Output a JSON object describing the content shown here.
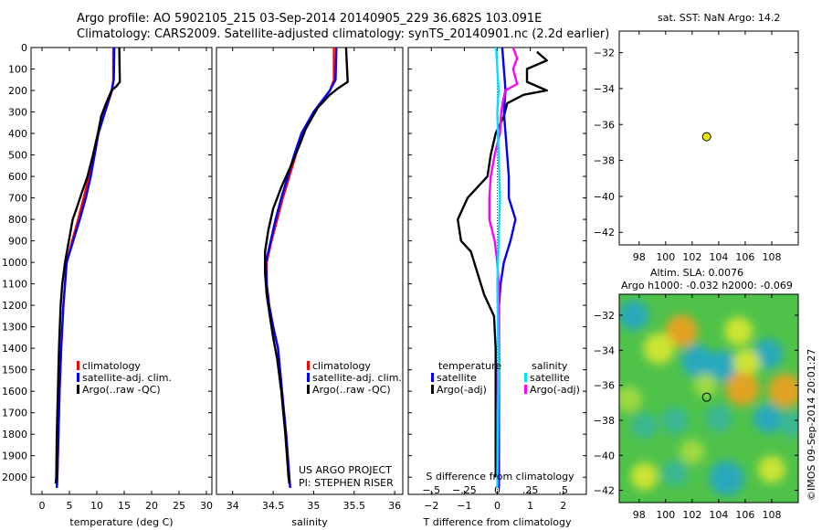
{
  "header": {
    "line1": "Argo profile: AO 5902105_215 03-Sep-2014 20140905_229 36.682S 103.091E",
    "line2": "Climatology: CARS2009. Satellite-adjusted climatology: synTS_20140901.nc (2.2d earlier)"
  },
  "colors": {
    "climatology": "#ff0000",
    "satellite": "#0000ff",
    "argo": "#000000",
    "s_satellite": "#00e0ff",
    "s_argo": "#ff00ff",
    "marker": "#e8e800"
  },
  "legend_left": {
    "items": [
      "climatology",
      "satellite-adj. clim.",
      "Argo(..raw -QC)"
    ]
  },
  "legend_mid": {
    "items": [
      "climatology",
      "satellite-adj. clim.",
      "Argo(..raw -QC)"
    ]
  },
  "legend_diff": {
    "temp_title": "temperature",
    "temp_sat": "satellite",
    "temp_argo": "Argo(-adj)",
    "sal_title": "salinity",
    "sal_sat": "satellite",
    "sal_argo": "Argo(-adj)"
  },
  "credits": {
    "project": "US ARGO PROJECT",
    "pi": "PI: STEPHEN RISER"
  },
  "map1": {
    "title": "sat. SST: NaN Argo: 14.2"
  },
  "map2": {
    "title1": "Altim. SLA: 0.0076",
    "title2": "Argo h1000: -0.032 h2000: -0.069"
  },
  "side_label": "©IMOS 09-Sep-2014 20:01:27",
  "chart_data": [
    {
      "type": "line",
      "name": "temperature profile",
      "xlabel": "temperature (deg C)",
      "ylabel": "",
      "xlim": [
        -2,
        31
      ],
      "ylim": [
        2080,
        0
      ],
      "x_ticks": [
        0,
        5,
        10,
        15,
        20,
        25,
        30
      ],
      "y_ticks": [
        0,
        100,
        200,
        300,
        400,
        500,
        600,
        700,
        800,
        900,
        1000,
        1100,
        1200,
        1300,
        1400,
        1500,
        1600,
        1700,
        1800,
        1900,
        2000
      ],
      "series": [
        {
          "name": "climatology",
          "points": [
            [
              13,
              0
            ],
            [
              13,
              150
            ],
            [
              12.8,
              200
            ],
            [
              11.5,
              300
            ],
            [
              10.2,
              400
            ],
            [
              9.4,
              500
            ],
            [
              8.6,
              600
            ],
            [
              7.6,
              700
            ],
            [
              6.6,
              800
            ],
            [
              5.5,
              900
            ],
            [
              4.5,
              1000
            ],
            [
              3.9,
              1200
            ],
            [
              3.5,
              1400
            ],
            [
              3.2,
              1600
            ],
            [
              3.0,
              1800
            ],
            [
              2.8,
              2000
            ],
            [
              2.7,
              2050
            ]
          ]
        },
        {
          "name": "satellite-adj. clim.",
          "points": [
            [
              13.2,
              0
            ],
            [
              13.1,
              150
            ],
            [
              12.7,
              200
            ],
            [
              11.5,
              300
            ],
            [
              10.3,
              400
            ],
            [
              9.6,
              500
            ],
            [
              8.9,
              600
            ],
            [
              8,
              700
            ],
            [
              6.9,
              800
            ],
            [
              5.7,
              900
            ],
            [
              4.5,
              1000
            ],
            [
              3.9,
              1200
            ],
            [
              3.5,
              1400
            ],
            [
              3.2,
              1600
            ],
            [
              3.0,
              1800
            ],
            [
              2.8,
              2000
            ],
            [
              2.7,
              2050
            ]
          ]
        },
        {
          "name": "Argo(..raw -QC)",
          "points": [
            [
              14.1,
              0
            ],
            [
              14.2,
              160
            ],
            [
              13.6,
              180
            ],
            [
              12.7,
              200
            ],
            [
              11.7,
              260
            ],
            [
              10.8,
              320
            ],
            [
              10.2,
              400
            ],
            [
              9.3,
              500
            ],
            [
              8.3,
              600
            ],
            [
              7.2,
              680
            ],
            [
              6.3,
              750
            ],
            [
              5.6,
              800
            ],
            [
              4.9,
              900
            ],
            [
              4.2,
              1000
            ],
            [
              3.7,
              1100
            ],
            [
              3.4,
              1200
            ],
            [
              3.1,
              1400
            ],
            [
              2.9,
              1600
            ],
            [
              2.7,
              1800
            ],
            [
              2.6,
              2000
            ],
            [
              2.5,
              2030
            ]
          ]
        }
      ]
    },
    {
      "type": "line",
      "name": "salinity profile",
      "xlabel": "salinity",
      "xlim": [
        33.8,
        36.1
      ],
      "ylim": [
        2080,
        0
      ],
      "x_ticks": [
        34,
        34.5,
        35,
        35.5,
        36
      ],
      "series": [
        {
          "name": "climatology",
          "points": [
            [
              35.25,
              0
            ],
            [
              35.25,
              150
            ],
            [
              35.2,
              200
            ],
            [
              35.0,
              300
            ],
            [
              34.85,
              400
            ],
            [
              34.78,
              500
            ],
            [
              34.7,
              600
            ],
            [
              34.62,
              700
            ],
            [
              34.55,
              800
            ],
            [
              34.48,
              900
            ],
            [
              34.42,
              1000
            ],
            [
              34.42,
              1100
            ],
            [
              34.45,
              1200
            ],
            [
              34.5,
              1300
            ],
            [
              34.56,
              1400
            ],
            [
              34.61,
              1600
            ],
            [
              34.66,
              1800
            ],
            [
              34.7,
              2000
            ],
            [
              34.71,
              2050
            ]
          ]
        },
        {
          "name": "satellite-adj. clim.",
          "points": [
            [
              35.28,
              0
            ],
            [
              35.27,
              150
            ],
            [
              35.2,
              200
            ],
            [
              35.0,
              300
            ],
            [
              34.85,
              400
            ],
            [
              34.76,
              500
            ],
            [
              34.68,
              600
            ],
            [
              34.6,
              700
            ],
            [
              34.53,
              800
            ],
            [
              34.47,
              900
            ],
            [
              34.41,
              1000
            ],
            [
              34.42,
              1100
            ],
            [
              34.45,
              1200
            ],
            [
              34.5,
              1300
            ],
            [
              34.56,
              1400
            ],
            [
              34.61,
              1600
            ],
            [
              34.66,
              1800
            ],
            [
              34.7,
              2000
            ],
            [
              34.71,
              2050
            ]
          ]
        },
        {
          "name": "Argo(..raw -QC)",
          "points": [
            [
              35.4,
              0
            ],
            [
              35.42,
              160
            ],
            [
              35.3,
              190
            ],
            [
              35.2,
              220
            ],
            [
              35.05,
              280
            ],
            [
              34.9,
              380
            ],
            [
              34.83,
              450
            ],
            [
              34.72,
              550
            ],
            [
              34.6,
              650
            ],
            [
              34.5,
              750
            ],
            [
              34.44,
              850
            ],
            [
              34.4,
              950
            ],
            [
              34.4,
              1050
            ],
            [
              34.42,
              1150
            ],
            [
              34.46,
              1250
            ],
            [
              34.5,
              1350
            ],
            [
              34.55,
              1450
            ],
            [
              34.6,
              1600
            ],
            [
              34.65,
              1800
            ],
            [
              34.69,
              2000
            ],
            [
              34.7,
              2030
            ]
          ]
        }
      ]
    },
    {
      "type": "line",
      "name": "difference from climatology",
      "xlabel": "T difference from climatology",
      "x2label": "S difference from climatology",
      "xlim": [
        -2.7,
        2.7
      ],
      "ylim": [
        2080,
        0
      ],
      "x_ticks": [
        -2,
        -1,
        0,
        1,
        2
      ],
      "x2_ticks": [
        -0.5,
        -0.25,
        0,
        0.25,
        0.5
      ],
      "series": [
        {
          "name": "temperature satellite",
          "points": [
            [
              0.15,
              0
            ],
            [
              0.2,
              100
            ],
            [
              0.25,
              200
            ],
            [
              0.2,
              300
            ],
            [
              0.25,
              400
            ],
            [
              0.3,
              500
            ],
            [
              0.35,
              600
            ],
            [
              0.35,
              700
            ],
            [
              0.55,
              800
            ],
            [
              0.4,
              900
            ],
            [
              0.2,
              1000
            ],
            [
              0.1,
              1100
            ],
            [
              0.05,
              1200
            ],
            [
              0.05,
              1500
            ],
            [
              0.05,
              2050
            ]
          ]
        },
        {
          "name": "temperature Argo(-adj)",
          "points": [
            [
              1.2,
              20
            ],
            [
              1.5,
              60
            ],
            [
              0.9,
              100
            ],
            [
              0.9,
              160
            ],
            [
              1.5,
              200
            ],
            [
              0.8,
              220
            ],
            [
              0.3,
              260
            ],
            [
              0.2,
              320
            ],
            [
              -0.05,
              400
            ],
            [
              -0.2,
              500
            ],
            [
              -0.3,
              600
            ],
            [
              -0.9,
              700
            ],
            [
              -1.2,
              800
            ],
            [
              -1.1,
              900
            ],
            [
              -0.8,
              950
            ],
            [
              -0.6,
              1050
            ],
            [
              -0.4,
              1150
            ],
            [
              -0.1,
              1250
            ],
            [
              -0.05,
              1400
            ],
            [
              -0.05,
              1600
            ],
            [
              -0.05,
              1800
            ],
            [
              -0.05,
              2000
            ]
          ]
        },
        {
          "name": "salinity satellite",
          "points": [
            [
              -0.01,
              0
            ],
            [
              0,
              100
            ],
            [
              0.01,
              200
            ],
            [
              0.0,
              300
            ],
            [
              0.01,
              500
            ],
            [
              0.02,
              700
            ],
            [
              0.01,
              900
            ],
            [
              0.0,
              1100
            ],
            [
              0.01,
              1500
            ],
            [
              0.0,
              2050
            ]
          ]
        },
        {
          "name": "salinity Argo(-adj)",
          "points": [
            [
              0.12,
              0
            ],
            [
              0.15,
              50
            ],
            [
              0.12,
              100
            ],
            [
              0.15,
              170
            ],
            [
              0.06,
              200
            ],
            [
              0.04,
              260
            ],
            [
              0.03,
              300
            ],
            [
              0.02,
              400
            ],
            [
              -0.02,
              500
            ],
            [
              -0.05,
              600
            ],
            [
              -0.06,
              700
            ],
            [
              -0.06,
              800
            ],
            [
              -0.02,
              900
            ],
            [
              0.0,
              1000
            ],
            [
              0.01,
              1100
            ],
            [
              0.01,
              1400
            ],
            [
              0.0,
              1700
            ],
            [
              0.0,
              2000
            ]
          ]
        }
      ]
    },
    {
      "type": "scatter",
      "name": "position map (SST)",
      "xlim": [
        96.5,
        110
      ],
      "ylim": [
        -42.7,
        -30.8
      ],
      "x_ticks": [
        98,
        100,
        102,
        104,
        106,
        108
      ],
      "y_ticks": [
        -32,
        -34,
        -36,
        -38,
        -40,
        -42
      ],
      "points": [
        [
          103.09,
          -36.68
        ]
      ]
    },
    {
      "type": "heatmap",
      "name": "altimetry SLA map",
      "xlim": [
        96.5,
        110
      ],
      "ylim": [
        -42.7,
        -30.8
      ],
      "x_ticks": [
        98,
        100,
        102,
        104,
        106,
        108
      ],
      "y_ticks": [
        -32,
        -34,
        -36,
        -38,
        -40,
        -42
      ],
      "points": [
        [
          103.09,
          -36.68
        ]
      ],
      "blobs": [
        {
          "x": 101.2,
          "y": -32.9,
          "v": 0.55
        },
        {
          "x": 99.5,
          "y": -33.9,
          "v": 0.5
        },
        {
          "x": 97.6,
          "y": -32.0,
          "v": -0.45
        },
        {
          "x": 102.4,
          "y": -34.6,
          "v": -0.55
        },
        {
          "x": 105.5,
          "y": -32.9,
          "v": 0.4
        },
        {
          "x": 104.3,
          "y": -34.9,
          "v": -0.5
        },
        {
          "x": 107.7,
          "y": -34.2,
          "v": -0.45
        },
        {
          "x": 106.1,
          "y": -34.7,
          "v": 0.35
        },
        {
          "x": 105.8,
          "y": -36.2,
          "v": 0.6
        },
        {
          "x": 109.0,
          "y": -36.3,
          "v": 0.6
        },
        {
          "x": 107.7,
          "y": -37.9,
          "v": -0.4
        },
        {
          "x": 109.6,
          "y": -38.2,
          "v": -0.35
        },
        {
          "x": 104.0,
          "y": -37.9,
          "v": -0.35
        },
        {
          "x": 100.7,
          "y": -38.0,
          "v": -0.35
        },
        {
          "x": 98.4,
          "y": -38.3,
          "v": -0.3
        },
        {
          "x": 103.0,
          "y": -36.0,
          "v": 0.2
        },
        {
          "x": 100.7,
          "y": -41.0,
          "v": -0.3
        },
        {
          "x": 104.6,
          "y": -41.3,
          "v": -0.65
        },
        {
          "x": 98.4,
          "y": -41.2,
          "v": 0.35
        },
        {
          "x": 108.0,
          "y": -40.8,
          "v": 0.35
        },
        {
          "x": 97.2,
          "y": -36.8,
          "v": 0.3
        },
        {
          "x": 102.0,
          "y": -39.8,
          "v": 0.25
        }
      ]
    }
  ]
}
